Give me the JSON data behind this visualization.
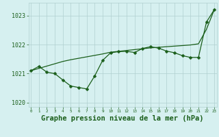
{
  "title": "Graphe pression niveau de la mer (hPa)",
  "x": [
    0,
    1,
    2,
    3,
    4,
    5,
    6,
    7,
    8,
    9,
    10,
    11,
    12,
    13,
    14,
    15,
    16,
    17,
    18,
    19,
    20,
    21,
    22,
    23
  ],
  "y_jagged": [
    1021.1,
    1021.25,
    1021.05,
    1021.0,
    1020.78,
    1020.57,
    1020.52,
    1020.47,
    1020.92,
    1021.46,
    1021.72,
    1021.76,
    1021.77,
    1021.73,
    1021.87,
    1021.93,
    1021.88,
    1021.78,
    1021.72,
    1021.62,
    1021.56,
    1021.56,
    1022.78,
    1023.22
  ],
  "y_smooth": [
    1021.1,
    1021.18,
    1021.26,
    1021.34,
    1021.42,
    1021.48,
    1021.53,
    1021.58,
    1021.63,
    1021.68,
    1021.74,
    1021.77,
    1021.8,
    1021.83,
    1021.86,
    1021.89,
    1021.91,
    1021.93,
    1021.95,
    1021.97,
    1021.99,
    1022.03,
    1022.53,
    1023.22
  ],
  "ylim": [
    1019.85,
    1023.45
  ],
  "yticks": [
    1020,
    1021,
    1022,
    1023
  ],
  "xlim": [
    -0.3,
    23.3
  ],
  "line_color": "#1a5e1a",
  "bg_color": "#d6f0f0",
  "grid_color": "#b0d0d0",
  "text_color": "#1a5e1a",
  "title_fontsize": 7.5,
  "ytick_fontsize": 6,
  "xtick_fontsize": 4.2,
  "marker_size": 2.5,
  "linewidth": 0.9
}
